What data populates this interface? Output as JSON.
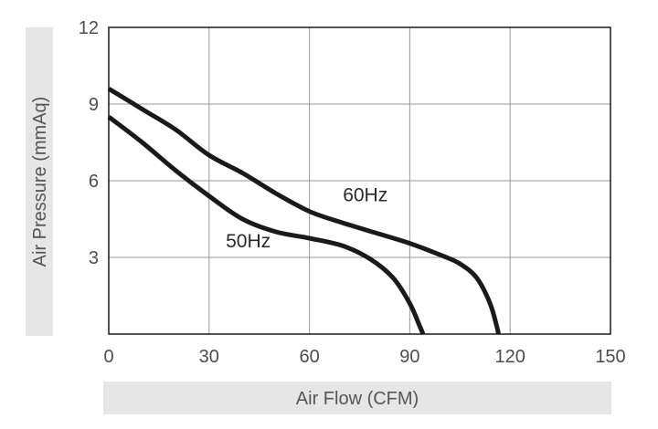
{
  "chart_data": {
    "type": "line",
    "xlabel": "Air Flow (CFM)",
    "ylabel": "Air Pressure (mmAq)",
    "xlim": [
      0,
      150
    ],
    "ylim": [
      0,
      12
    ],
    "x_ticks": [
      0,
      30,
      60,
      90,
      120,
      150
    ],
    "y_ticks": [
      3,
      6,
      9,
      12
    ],
    "grid": true,
    "series": [
      {
        "name": "60Hz",
        "color": "#1a1a1a",
        "label_at": [
          70,
          5.2
        ],
        "x": [
          0,
          10,
          20,
          30,
          40,
          50,
          60,
          70,
          80,
          90,
          100,
          105,
          110,
          114,
          116,
          116.5
        ],
        "y": [
          9.6,
          8.8,
          8.0,
          7.0,
          6.3,
          5.5,
          4.8,
          4.35,
          3.95,
          3.55,
          3.05,
          2.75,
          2.2,
          1.2,
          0.3,
          0
        ]
      },
      {
        "name": "50Hz",
        "color": "#1a1a1a",
        "label_at": [
          35,
          3.4
        ],
        "x": [
          0,
          10,
          20,
          30,
          40,
          50,
          60,
          70,
          78,
          85,
          90,
          93,
          94
        ],
        "y": [
          8.5,
          7.5,
          6.4,
          5.4,
          4.5,
          4.0,
          3.75,
          3.45,
          2.95,
          2.2,
          1.2,
          0.3,
          0
        ]
      }
    ]
  }
}
